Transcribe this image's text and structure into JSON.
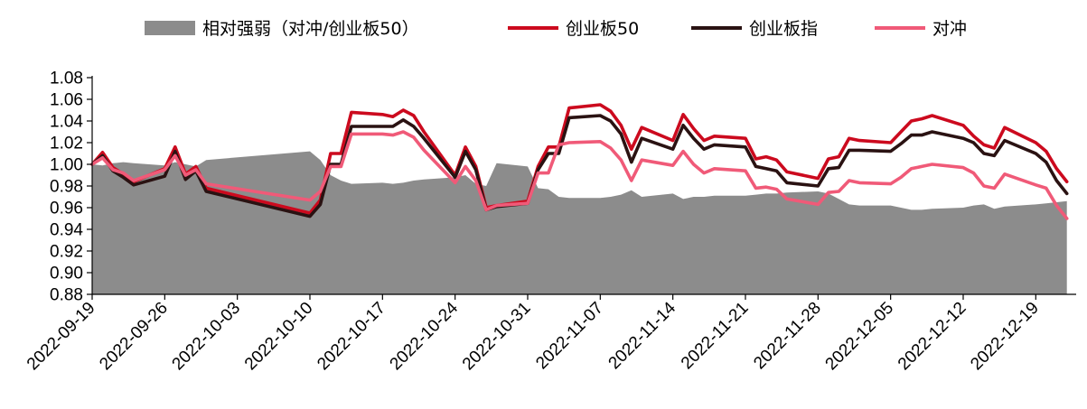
{
  "chart_data": {
    "type": "line",
    "title": "",
    "xlabel": "",
    "ylabel": "",
    "ylim": [
      0.88,
      1.08
    ],
    "yticks": [
      "0.88",
      "0.90",
      "0.92",
      "0.94",
      "0.96",
      "0.98",
      "1.00",
      "1.02",
      "1.04",
      "1.06",
      "1.08"
    ],
    "x_tick_labels": [
      "2022-09-19",
      "2022-09-26",
      "2022-10-03",
      "2022-10-10",
      "2022-10-17",
      "2022-10-24",
      "2022-10-31",
      "2022-11-07",
      "2022-11-14",
      "2022-11-21",
      "2022-11-28",
      "2022-12-05",
      "2022-12-12",
      "2022-12-19"
    ],
    "legend_position": "top",
    "grid": false,
    "dates": [
      "2022-09-19",
      "2022-09-20",
      "2022-09-21",
      "2022-09-22",
      "2022-09-23",
      "2022-09-26",
      "2022-09-27",
      "2022-09-28",
      "2022-09-29",
      "2022-09-30",
      "2022-10-10",
      "2022-10-11",
      "2022-10-12",
      "2022-10-13",
      "2022-10-14",
      "2022-10-17",
      "2022-10-18",
      "2022-10-19",
      "2022-10-20",
      "2022-10-21",
      "2022-10-24",
      "2022-10-25",
      "2022-10-26",
      "2022-10-27",
      "2022-10-28",
      "2022-10-31",
      "2022-11-01",
      "2022-11-02",
      "2022-11-03",
      "2022-11-04",
      "2022-11-07",
      "2022-11-08",
      "2022-11-09",
      "2022-11-10",
      "2022-11-11",
      "2022-11-14",
      "2022-11-15",
      "2022-11-16",
      "2022-11-17",
      "2022-11-18",
      "2022-11-21",
      "2022-11-22",
      "2022-11-23",
      "2022-11-24",
      "2022-11-25",
      "2022-11-28",
      "2022-11-29",
      "2022-11-30",
      "2022-12-01",
      "2022-12-02",
      "2022-12-05",
      "2022-12-06",
      "2022-12-07",
      "2022-12-08",
      "2022-12-09",
      "2022-12-12",
      "2022-12-13",
      "2022-12-14",
      "2022-12-15",
      "2022-12-16",
      "2022-12-19",
      "2022-12-20",
      "2022-12-21",
      "2022-12-22"
    ],
    "series": [
      {
        "name": "相对强弱（对冲/创业板50）",
        "type": "area",
        "color": "#8c8c8c",
        "values": [
          1.0,
          0.999,
          1.001,
          1.002,
          1.001,
          0.999,
          1.002,
          1.0,
          0.998,
          1.004,
          1.012,
          1.004,
          0.99,
          0.985,
          0.982,
          0.983,
          0.982,
          0.983,
          0.985,
          0.986,
          0.988,
          0.99,
          0.982,
          0.98,
          1.001,
          0.998,
          0.978,
          0.977,
          0.97,
          0.969,
          0.969,
          0.97,
          0.972,
          0.976,
          0.97,
          0.973,
          0.968,
          0.97,
          0.97,
          0.971,
          0.971,
          0.972,
          0.973,
          0.973,
          0.974,
          0.975,
          0.973,
          0.968,
          0.963,
          0.962,
          0.962,
          0.96,
          0.958,
          0.958,
          0.959,
          0.96,
          0.962,
          0.963,
          0.959,
          0.961,
          0.963,
          0.964,
          0.965,
          0.966
        ]
      },
      {
        "name": "创业板50",
        "type": "line",
        "color": "#cc0a1e",
        "values": [
          1.0,
          1.011,
          0.997,
          0.991,
          0.984,
          0.996,
          1.016,
          0.991,
          0.998,
          0.978,
          0.955,
          0.967,
          1.01,
          1.01,
          1.048,
          1.046,
          1.044,
          1.05,
          1.045,
          1.03,
          0.99,
          1.016,
          0.998,
          0.96,
          0.962,
          0.966,
          0.998,
          1.016,
          1.016,
          1.052,
          1.055,
          1.049,
          1.036,
          1.014,
          1.034,
          1.022,
          1.046,
          1.033,
          1.022,
          1.026,
          1.024,
          1.005,
          1.007,
          1.004,
          0.993,
          0.987,
          1.005,
          1.007,
          1.024,
          1.022,
          1.02,
          1.03,
          1.04,
          1.042,
          1.045,
          1.036,
          1.026,
          1.018,
          1.015,
          1.034,
          1.02,
          1.012,
          0.996,
          0.984
        ]
      },
      {
        "name": "创业板指",
        "type": "line",
        "color": "#2a1212",
        "values": [
          1.0,
          1.008,
          0.994,
          0.988,
          0.981,
          0.989,
          1.012,
          0.986,
          0.994,
          0.975,
          0.952,
          0.963,
          1.0,
          1.0,
          1.035,
          1.035,
          1.035,
          1.041,
          1.035,
          1.024,
          0.988,
          1.012,
          0.995,
          0.958,
          0.961,
          0.964,
          0.995,
          1.01,
          1.01,
          1.043,
          1.045,
          1.04,
          1.028,
          1.002,
          1.024,
          1.014,
          1.036,
          1.024,
          1.014,
          1.018,
          1.016,
          0.998,
          0.996,
          0.994,
          0.983,
          0.98,
          0.996,
          0.997,
          1.013,
          1.013,
          1.012,
          1.019,
          1.027,
          1.027,
          1.03,
          1.024,
          1.02,
          1.01,
          1.008,
          1.022,
          1.01,
          1.002,
          0.985,
          0.973
        ]
      },
      {
        "name": "对冲",
        "type": "line",
        "color": "#f05a78",
        "values": [
          1.0,
          1.006,
          0.995,
          0.992,
          0.985,
          0.995,
          1.008,
          0.99,
          0.995,
          0.982,
          0.967,
          0.975,
          0.998,
          0.998,
          1.028,
          1.028,
          1.027,
          1.03,
          1.025,
          1.013,
          0.983,
          0.998,
          0.985,
          0.958,
          0.962,
          0.964,
          0.992,
          0.992,
          1.018,
          1.02,
          1.021,
          1.015,
          1.004,
          0.985,
          1.004,
          0.999,
          1.012,
          1.0,
          0.992,
          0.996,
          0.994,
          0.978,
          0.979,
          0.977,
          0.968,
          0.963,
          0.974,
          0.975,
          0.985,
          0.983,
          0.982,
          0.988,
          0.996,
          0.998,
          1.0,
          0.997,
          0.992,
          0.98,
          0.978,
          0.991,
          0.981,
          0.978,
          0.962,
          0.95
        ]
      }
    ]
  }
}
